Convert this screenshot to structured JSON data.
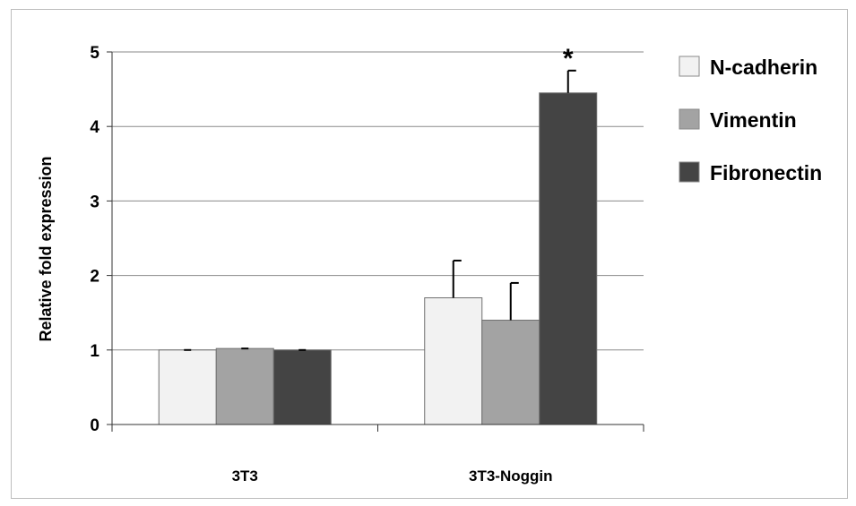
{
  "chart_data": {
    "type": "bar",
    "ylabel": "Relative fold expression",
    "xlabel": "",
    "ylim": [
      0,
      5
    ],
    "yticks": [
      0,
      1,
      2,
      3,
      4,
      5
    ],
    "grid": true,
    "legend_position": "right",
    "categories": [
      "3T3",
      "3T3-Noggin"
    ],
    "series": [
      {
        "name": "N-cadherin",
        "color": "#f2f2f2",
        "values": [
          1.0,
          1.7
        ],
        "error_plus": [
          0.0,
          0.5
        ]
      },
      {
        "name": "Vimentin",
        "color": "#a3a3a3",
        "values": [
          1.02,
          1.4
        ],
        "error_plus": [
          0.0,
          0.5
        ]
      },
      {
        "name": "Fibronectin",
        "color": "#444444",
        "values": [
          1.0,
          4.45
        ],
        "error_plus": [
          0.0,
          0.3
        ]
      }
    ],
    "annotations": [
      {
        "text": "*",
        "category": "3T3-Noggin",
        "series": "Fibronectin"
      }
    ]
  }
}
